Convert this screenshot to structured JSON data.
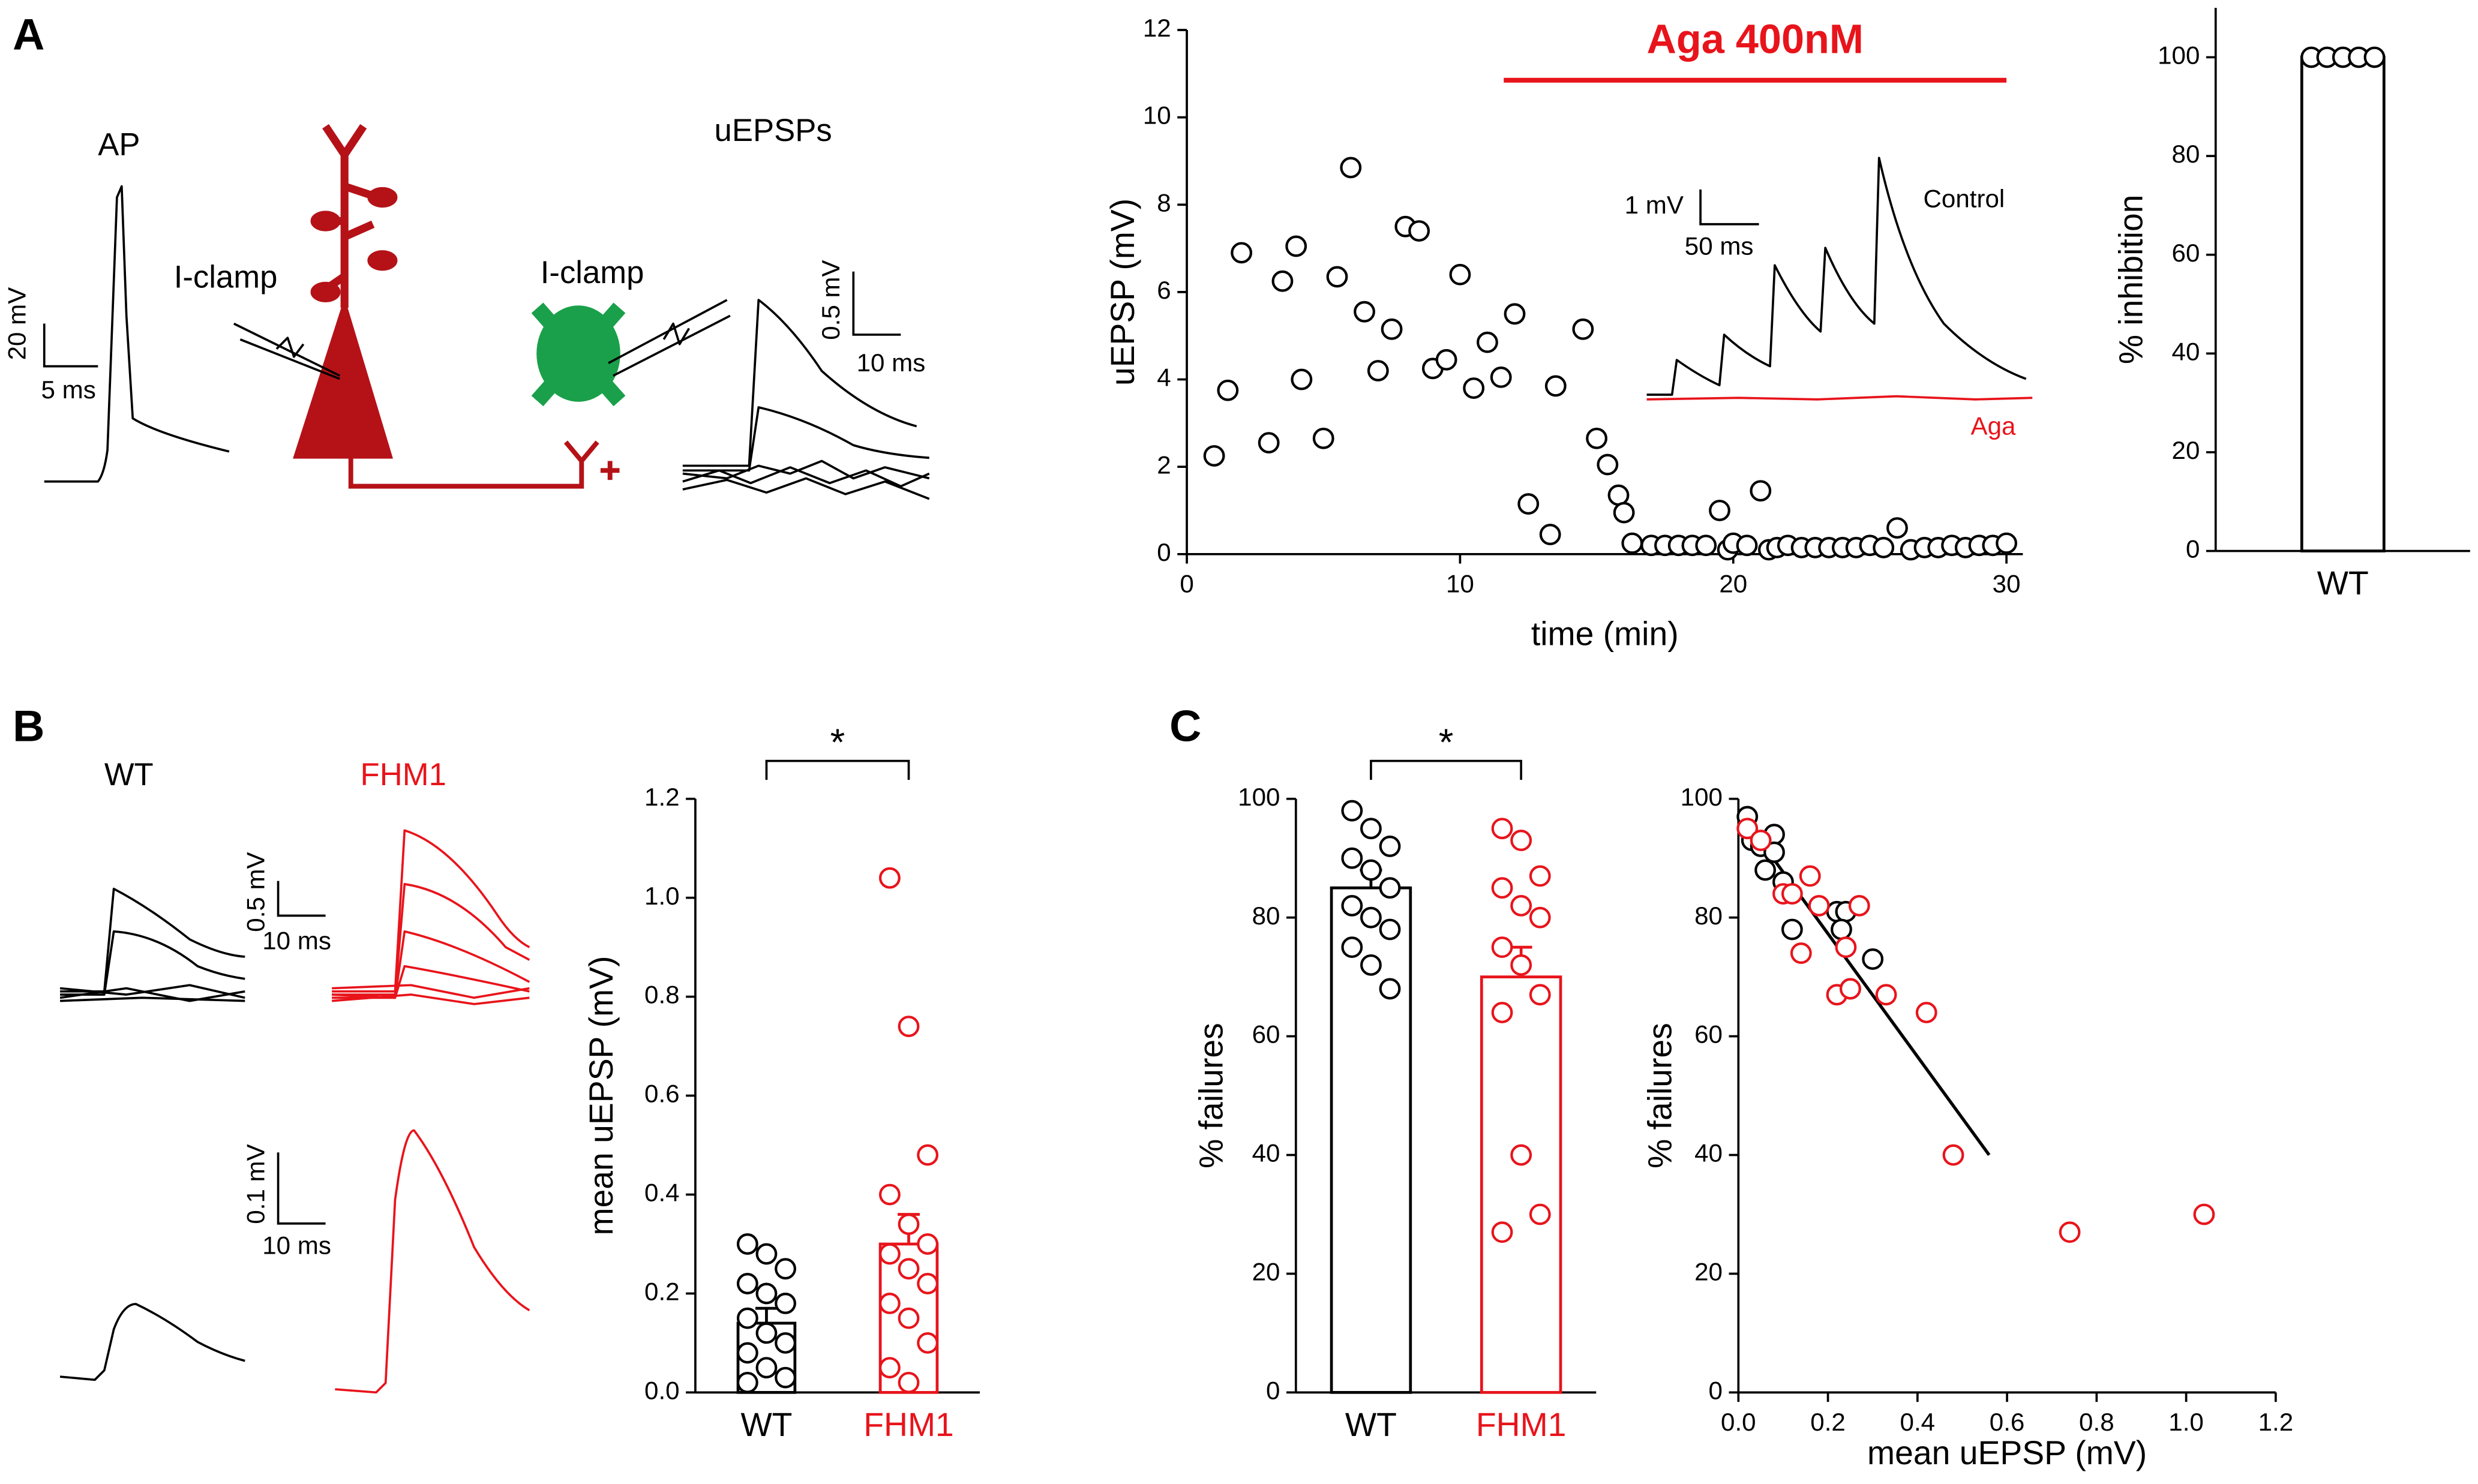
{
  "panel_labels": [
    "A",
    "B",
    "C"
  ],
  "figure_text": {
    "ap": "AP",
    "iclamp_pre": "I-clamp",
    "iclamp_post": "I-clamp",
    "uepsps": "uEPSPs",
    "ap_scale_v": "20 mV",
    "ap_scale_t": "5 ms",
    "uepsp_scale_v": "0.5 mV",
    "uepsp_scale_t": "10 ms",
    "inset_scale_v": "1 mV",
    "inset_scale_t": "50 ms",
    "inset_control": "Control",
    "inset_aga": "Aga",
    "b_wt": "WT",
    "b_fhm1": "FHM1",
    "b_scale_v1": "0.5 mV",
    "b_scale_t1": "10 ms",
    "b_scale_v2": "0.1 mV",
    "b_scale_t2": "10 ms"
  },
  "chart_data": [
    {
      "type": "scatter",
      "xlabel": "time (min)",
      "ylabel": "uEPSP (mV)",
      "xlim": [
        0,
        30.6
      ],
      "xticks": [
        0,
        10,
        20,
        30
      ],
      "ylim": [
        0,
        12
      ],
      "yticks": [
        0,
        2,
        4,
        6,
        8,
        10,
        12
      ],
      "annotation": "Aga 400nM",
      "annotation_color": "#e8141b",
      "annotation_bar": {
        "x": [
          11.6,
          30
        ],
        "y": 10.85
      },
      "series": [
        {
          "color": "#000000",
          "x": [
            1,
            1.5,
            2,
            3,
            3.5,
            4,
            4.2,
            5,
            5.5,
            6,
            6.5,
            7,
            7.5,
            8,
            8.5,
            9,
            9.5,
            10,
            10.5,
            11,
            11.5,
            12,
            12.5,
            13.3,
            13.5,
            14.5,
            15,
            15.4,
            15.8,
            16,
            16.3,
            17,
            17.5,
            18,
            18.5,
            19,
            19.5,
            19.8,
            20,
            20.5,
            21,
            21.3,
            21.6,
            22,
            22.5,
            23,
            23.5,
            24,
            24.5,
            25,
            25.5,
            26,
            26.5,
            27,
            27.5,
            28,
            28.5,
            29,
            29.5,
            30
          ],
          "values": [
            2.25,
            3.75,
            6.9,
            2.55,
            6.25,
            7.05,
            4,
            2.65,
            6.35,
            8.85,
            5.55,
            4.2,
            5.15,
            7.5,
            7.4,
            4.25,
            4.45,
            6.4,
            3.8,
            4.85,
            4.05,
            5.5,
            1.15,
            0.45,
            3.85,
            5.15,
            2.65,
            2.05,
            1.35,
            0.95,
            0.25,
            0.2,
            0.2,
            0.2,
            0.2,
            0.2,
            1,
            0.1,
            0.25,
            0.2,
            1.45,
            0.1,
            0.15,
            0.2,
            0.15,
            0.15,
            0.15,
            0.15,
            0.15,
            0.2,
            0.15,
            0.6,
            0.1,
            0.15,
            0.15,
            0.2,
            0.15,
            0.2,
            0.2,
            0.25
          ]
        }
      ]
    },
    {
      "type": "bar",
      "ylabel": "% inhibition",
      "ylim": [
        0,
        110
      ],
      "yticks": [
        0,
        20,
        40,
        60,
        80,
        100
      ],
      "categories": [
        "WT"
      ],
      "colors": [
        "#000000"
      ],
      "values": [
        100
      ],
      "points": [
        [
          100,
          100,
          100,
          100,
          100
        ]
      ]
    },
    {
      "type": "bar",
      "ylabel": "mean uEPSP (mV)",
      "ylim": [
        0,
        1.2
      ],
      "yticks": [
        {
          "value": 0,
          "label": "0.0"
        },
        {
          "value": 0.2,
          "label": "0.2"
        },
        {
          "value": 0.4,
          "label": "0.4"
        },
        {
          "value": 0.6,
          "label": "0.6"
        },
        {
          "value": 0.8,
          "label": "0.8"
        },
        {
          "value": 1.0,
          "label": "1.0"
        },
        {
          "value": 1.2,
          "label": "1.2"
        }
      ],
      "categories": [
        "WT",
        "FHM1"
      ],
      "colors": [
        "#000000",
        "#e8141b"
      ],
      "values": [
        0.14,
        0.3
      ],
      "errors": [
        0.03,
        0.06
      ],
      "significance": "*",
      "points": [
        [
          0.3,
          0.28,
          0.25,
          0.22,
          0.2,
          0.18,
          0.15,
          0.12,
          0.1,
          0.08,
          0.05,
          0.03,
          0.02
        ],
        [
          1.04,
          0.74,
          0.48,
          0.4,
          0.34,
          0.3,
          0.28,
          0.25,
          0.22,
          0.18,
          0.15,
          0.1,
          0.05,
          0.02
        ]
      ]
    },
    {
      "type": "bar",
      "ylabel": "% failures",
      "ylim": [
        0,
        100
      ],
      "yticks": [
        0,
        20,
        40,
        60,
        80,
        100
      ],
      "categories": [
        "WT",
        "FHM1"
      ],
      "colors": [
        "#000000",
        "#e8141b"
      ],
      "values": [
        85,
        70
      ],
      "errors": [
        3,
        5
      ],
      "significance": "*",
      "points": [
        [
          98,
          95,
          92,
          90,
          88,
          85,
          82,
          80,
          78,
          75,
          72,
          68
        ],
        [
          95,
          93,
          87,
          85,
          82,
          80,
          75,
          72,
          67,
          64,
          40,
          30,
          27
        ]
      ]
    },
    {
      "type": "scatter",
      "xlabel": "mean uEPSP (mV)",
      "ylabel": "% failures",
      "xlim": [
        0,
        1.2
      ],
      "xticks": [
        {
          "value": 0,
          "label": "0.0"
        },
        {
          "value": 0.2,
          "label": "0.2"
        },
        {
          "value": 0.4,
          "label": "0.4"
        },
        {
          "value": 0.6,
          "label": "0.6"
        },
        {
          "value": 0.8,
          "label": "0.8"
        },
        {
          "value": 1.0,
          "label": "1.0"
        },
        {
          "value": 1.2,
          "label": "1.2"
        }
      ],
      "ylim": [
        0,
        100
      ],
      "yticks": [
        0,
        20,
        40,
        60,
        80,
        100
      ],
      "fit_line": {
        "color": "#000000",
        "x": [
          0,
          0.56
        ],
        "values": [
          98,
          40
        ]
      },
      "series": [
        {
          "color": "#000000",
          "x": [
            0.02,
            0.03,
            0.05,
            0.06,
            0.08,
            0.08,
            0.1,
            0.12,
            0.22,
            0.24,
            0.23,
            0.25,
            0.3
          ],
          "values": [
            97,
            93,
            92,
            88,
            94,
            91,
            86,
            78,
            81,
            81,
            78,
            68,
            73
          ]
        },
        {
          "color": "#e8141b",
          "x": [
            0.02,
            0.05,
            0.1,
            0.12,
            0.14,
            0.16,
            0.18,
            0.22,
            0.24,
            0.27,
            0.25,
            0.33,
            0.42,
            0.48,
            0.74,
            1.04
          ],
          "values": [
            95,
            93,
            84,
            84,
            74,
            87,
            82,
            67,
            75,
            82,
            68,
            67,
            64,
            40,
            27,
            30
          ]
        }
      ]
    }
  ]
}
